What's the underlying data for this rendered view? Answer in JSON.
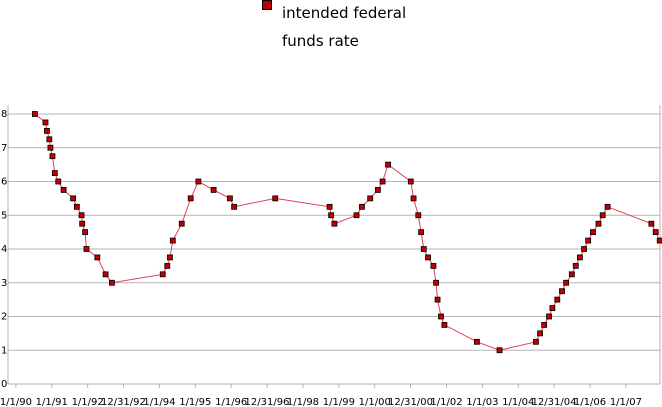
{
  "chart_data": {
    "type": "line",
    "series": [
      {
        "name": "intended federal funds rate",
        "color": "#c00000",
        "line_color": "#e0405a",
        "x": [
          1990.53,
          1990.825,
          1990.866,
          1990.932,
          1990.962,
          1991.019,
          1991.085,
          1991.181,
          1991.329,
          1991.595,
          1991.699,
          1991.83,
          1991.847,
          1991.929,
          1991.967,
          1992.27,
          1992.5,
          1992.676,
          1994.093,
          1994.219,
          1994.293,
          1994.373,
          1994.622,
          1994.871,
          1995.085,
          1995.51,
          1995.964,
          1996.082,
          1997.227,
          1998.742,
          1998.786,
          1998.877,
          1999.493,
          1999.644,
          1999.874,
          2000.088,
          2000.219,
          2000.372,
          2001.005,
          2001.082,
          2001.214,
          2001.293,
          2001.367,
          2001.485,
          2001.636,
          2001.71,
          2001.751,
          2001.847,
          2001.942,
          2002.847,
          2003.479,
          2004.493,
          2004.607,
          2004.721,
          2004.858,
          2004.951,
          2005.088,
          2005.219,
          2005.334,
          2005.493,
          2005.603,
          2005.718,
          2005.833,
          2005.948,
          2006.082,
          2006.236,
          2006.353,
          2006.49,
          2007.71,
          2007.83,
          2007.942
        ],
        "values": [
          8,
          7.75,
          7.5,
          7.25,
          7,
          6.75,
          6.25,
          6,
          5.75,
          5.5,
          5.25,
          5,
          4.75,
          4.5,
          4,
          3.75,
          3.25,
          3,
          3.25,
          3.5,
          3.75,
          4.25,
          4.75,
          5.5,
          6,
          5.75,
          5.5,
          5.25,
          5.5,
          5.25,
          5,
          4.75,
          5,
          5.25,
          5.5,
          5.75,
          6,
          6.5,
          6,
          5.5,
          5,
          4.5,
          4,
          3.75,
          3.5,
          3,
          2.5,
          2,
          1.75,
          1.25,
          1,
          1.25,
          1.5,
          1.75,
          2,
          2.25,
          2.5,
          2.75,
          3,
          3.25,
          3.5,
          3.75,
          4,
          4.25,
          4.5,
          4.75,
          5,
          5.25,
          4.75,
          4.5,
          4.25
        ]
      }
    ],
    "xlim": [
      1989.78,
      2007.95
    ],
    "xticks": [
      {
        "value": 1990,
        "label": "1/1/90"
      },
      {
        "value": 1991,
        "label": "1/1/91"
      },
      {
        "value": 1992,
        "label": "1/1/92"
      },
      {
        "value": 1992.997,
        "label": "12/31/92"
      },
      {
        "value": 1994,
        "label": "1/1/94"
      },
      {
        "value": 1995,
        "label": "1/1/95"
      },
      {
        "value": 1996,
        "label": "1/1/96"
      },
      {
        "value": 1996.997,
        "label": "12/31/96"
      },
      {
        "value": 1998,
        "label": "1/1/98"
      },
      {
        "value": 1999,
        "label": "1/1/99"
      },
      {
        "value": 2000,
        "label": "1/1/00"
      },
      {
        "value": 2000.997,
        "label": "12/31/00"
      },
      {
        "value": 2002,
        "label": "1/1/02"
      },
      {
        "value": 2003,
        "label": "1/1/03"
      },
      {
        "value": 2004,
        "label": "1/1/04"
      },
      {
        "value": 2004.997,
        "label": "12/31/04"
      },
      {
        "value": 2006,
        "label": "1/1/06"
      },
      {
        "value": 2007,
        "label": "1/1/07"
      }
    ],
    "ylim": [
      0,
      8
    ],
    "yticks": [
      0,
      1,
      2,
      3,
      4,
      5,
      6,
      7,
      8
    ],
    "grid": true
  }
}
